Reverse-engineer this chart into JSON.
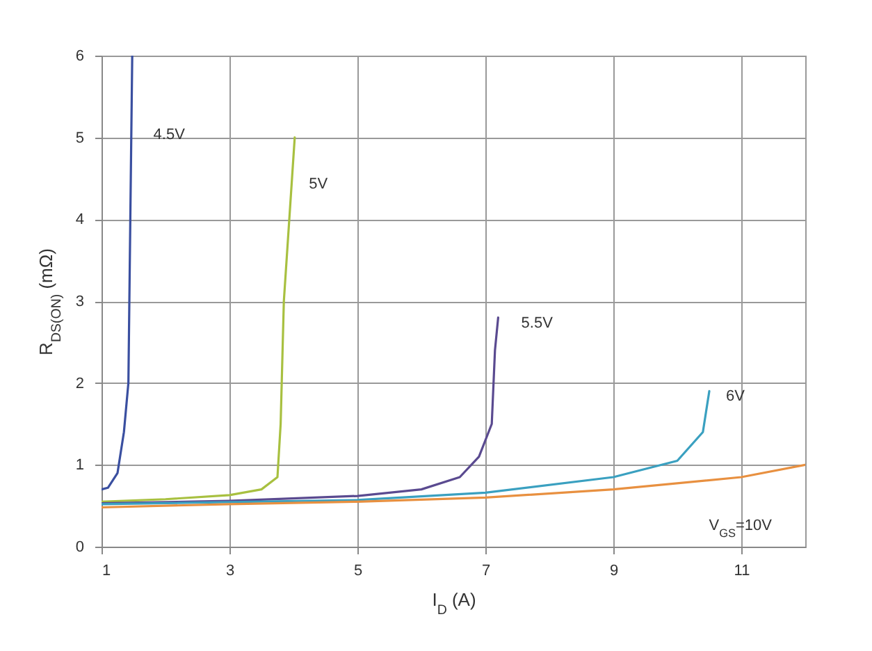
{
  "chart_data": {
    "type": "line",
    "xlabel": "I$_{D}$ (A)",
    "ylabel": "R$_{DS(ON)}$ (mΩ)",
    "xlim": [
      1,
      12
    ],
    "xticks": [
      1,
      3,
      5,
      7,
      9,
      11
    ],
    "ylim": [
      0,
      6
    ],
    "yticks": [
      0,
      1,
      2,
      3,
      4,
      5,
      6
    ],
    "grid": true,
    "line_style": "solid",
    "marker": "none",
    "series": [
      {
        "color": "#3a4fa0",
        "x": [
          1,
          1.1,
          1.25,
          1.35,
          1.42,
          1.45,
          1.48
        ],
        "values": [
          0.7,
          0.72,
          0.9,
          1.4,
          2,
          4,
          6
        ]
      },
      {
        "color": "#a8c040",
        "x": [
          1,
          2,
          3,
          3.5,
          3.75,
          3.8,
          3.85,
          4.02
        ],
        "values": [
          0.55,
          0.58,
          0.63,
          0.7,
          0.85,
          1.5,
          3,
          5
        ]
      },
      {
        "color": "#5a4a90",
        "x": [
          1,
          3,
          5,
          6,
          6.6,
          6.9,
          7.1,
          7.15,
          7.2
        ],
        "values": [
          0.53,
          0.56,
          0.62,
          0.7,
          0.85,
          1.1,
          1.5,
          2.4,
          2.8
        ]
      },
      {
        "color": "#3aa0c0",
        "x": [
          1,
          5,
          7,
          9,
          10,
          10.4,
          10.5
        ],
        "values": [
          0.52,
          0.57,
          0.66,
          0.85,
          1.05,
          1.4,
          1.9
        ]
      },
      {
        "color": "#e89040",
        "x": [
          1,
          3,
          5,
          7,
          9,
          11,
          12
        ],
        "values": [
          0.48,
          0.52,
          0.55,
          0.6,
          0.7,
          0.85,
          1.0
        ]
      }
    ],
    "annotations": [
      {
        "text": "4.5V",
        "x": 1.55,
        "y": 5.1
      },
      {
        "text": "5V",
        "x": 3.98,
        "y": 4.5
      },
      {
        "text": "5.5V",
        "x": 7.3,
        "y": 2.8
      },
      {
        "text": "6V",
        "x": 10.5,
        "y": 1.9
      },
      "V$_{GS}$=10V"
    ]
  }
}
